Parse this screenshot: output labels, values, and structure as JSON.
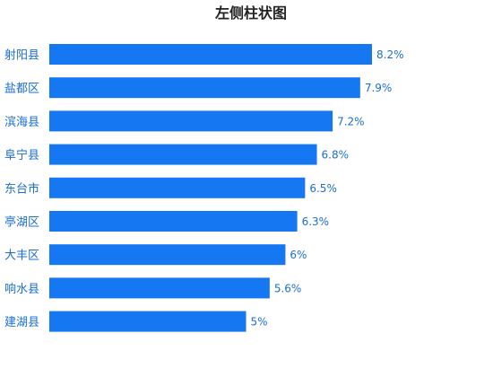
{
  "chart_data": {
    "type": "bar",
    "orientation": "horizontal",
    "title": "左侧柱状图",
    "categories": [
      "射阳县",
      "盐都区",
      "滨海县",
      "阜宁县",
      "东台市",
      "亭湖区",
      "大丰区",
      "响水县",
      "建湖县"
    ],
    "values": [
      8.2,
      7.9,
      7.2,
      6.8,
      6.5,
      6.3,
      6,
      5.6,
      5
    ],
    "value_labels": [
      "8.2%",
      "7.9%",
      "7.2%",
      "6.8%",
      "6.5%",
      "6.3%",
      "6%",
      "5.6%",
      "5%"
    ],
    "xlim": [
      0,
      10
    ],
    "grid": false,
    "bar_color": "#1677f3",
    "label_color": "#1a6fd0",
    "title_color": "#222222"
  }
}
